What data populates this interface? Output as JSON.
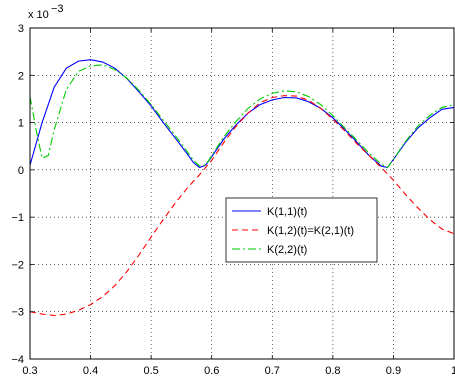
{
  "chart_data": {
    "type": "line",
    "title": "",
    "xlabel": "",
    "ylabel": "",
    "xlim": [
      0.3,
      1.0
    ],
    "ylim": [
      -4,
      3
    ],
    "x_ticks": [
      0.3,
      0.4,
      0.5,
      0.6,
      0.7,
      0.8,
      0.9,
      1
    ],
    "x_tick_labels": [
      "0.3",
      "0.4",
      "0.5",
      "0.6",
      "0.7",
      "0.8",
      "0.9",
      "1"
    ],
    "y_ticks": [
      -4,
      -3,
      -2,
      -1,
      0,
      1,
      2,
      3
    ],
    "y_tick_labels": [
      "−4",
      "−3",
      "−2",
      "−1",
      "0",
      "1",
      "2",
      "3"
    ],
    "y_exponent_base": "x 10",
    "y_exponent": "−3",
    "grid": true,
    "legend_position": "center-right",
    "series": [
      {
        "name": "K(1,1)(t)",
        "color": "#0000ff",
        "dash": "solid",
        "x": [
          0.3,
          0.32,
          0.34,
          0.36,
          0.38,
          0.4,
          0.42,
          0.44,
          0.46,
          0.48,
          0.5,
          0.52,
          0.54,
          0.56,
          0.57,
          0.58,
          0.59,
          0.6,
          0.62,
          0.64,
          0.66,
          0.68,
          0.7,
          0.72,
          0.74,
          0.76,
          0.78,
          0.8,
          0.82,
          0.84,
          0.86,
          0.88,
          0.89,
          0.9,
          0.92,
          0.94,
          0.96,
          0.98,
          1.0
        ],
        "y": [
          0.1,
          1.0,
          1.75,
          2.15,
          2.3,
          2.33,
          2.28,
          2.15,
          1.93,
          1.65,
          1.35,
          1.0,
          0.67,
          0.33,
          0.15,
          0.05,
          0.1,
          0.28,
          0.65,
          0.95,
          1.2,
          1.38,
          1.48,
          1.53,
          1.52,
          1.44,
          1.3,
          1.1,
          0.85,
          0.58,
          0.3,
          0.08,
          0.05,
          0.22,
          0.58,
          0.88,
          1.1,
          1.28,
          1.32
        ]
      },
      {
        "name": "K(1,2)(t)=K(2,1)(t)",
        "color": "#ff0000",
        "dash": "dashed",
        "x": [
          0.3,
          0.32,
          0.34,
          0.36,
          0.38,
          0.4,
          0.42,
          0.44,
          0.46,
          0.48,
          0.5,
          0.52,
          0.54,
          0.56,
          0.58,
          0.6,
          0.62,
          0.64,
          0.66,
          0.68,
          0.7,
          0.72,
          0.74,
          0.76,
          0.78,
          0.8,
          0.82,
          0.84,
          0.86,
          0.88,
          0.9,
          0.92,
          0.94,
          0.96,
          0.98,
          1.0
        ],
        "y": [
          -3.0,
          -3.05,
          -3.08,
          -3.05,
          -2.97,
          -2.85,
          -2.68,
          -2.45,
          -2.15,
          -1.8,
          -1.42,
          -1.05,
          -0.7,
          -0.38,
          -0.1,
          0.2,
          0.58,
          0.92,
          1.2,
          1.42,
          1.53,
          1.57,
          1.56,
          1.47,
          1.3,
          1.07,
          0.82,
          0.55,
          0.3,
          0.05,
          -0.22,
          -0.52,
          -0.8,
          -1.05,
          -1.25,
          -1.35
        ]
      },
      {
        "name": "K(2,2)(t)",
        "color": "#00cc00",
        "dash": "dashdot",
        "x": [
          0.3,
          0.31,
          0.32,
          0.33,
          0.34,
          0.36,
          0.38,
          0.4,
          0.42,
          0.44,
          0.46,
          0.48,
          0.5,
          0.52,
          0.54,
          0.56,
          0.57,
          0.58,
          0.59,
          0.6,
          0.62,
          0.64,
          0.66,
          0.68,
          0.7,
          0.72,
          0.74,
          0.76,
          0.78,
          0.8,
          0.82,
          0.84,
          0.86,
          0.88,
          0.89,
          0.9,
          0.92,
          0.94,
          0.96,
          0.98,
          1.0
        ],
        "y": [
          1.55,
          0.85,
          0.25,
          0.3,
          0.85,
          1.7,
          2.08,
          2.2,
          2.22,
          2.12,
          1.94,
          1.68,
          1.38,
          1.05,
          0.72,
          0.38,
          0.2,
          0.08,
          0.1,
          0.3,
          0.7,
          1.02,
          1.3,
          1.5,
          1.62,
          1.67,
          1.65,
          1.55,
          1.38,
          1.15,
          0.88,
          0.62,
          0.35,
          0.12,
          0.05,
          0.22,
          0.6,
          0.92,
          1.15,
          1.32,
          1.38
        ]
      }
    ]
  }
}
